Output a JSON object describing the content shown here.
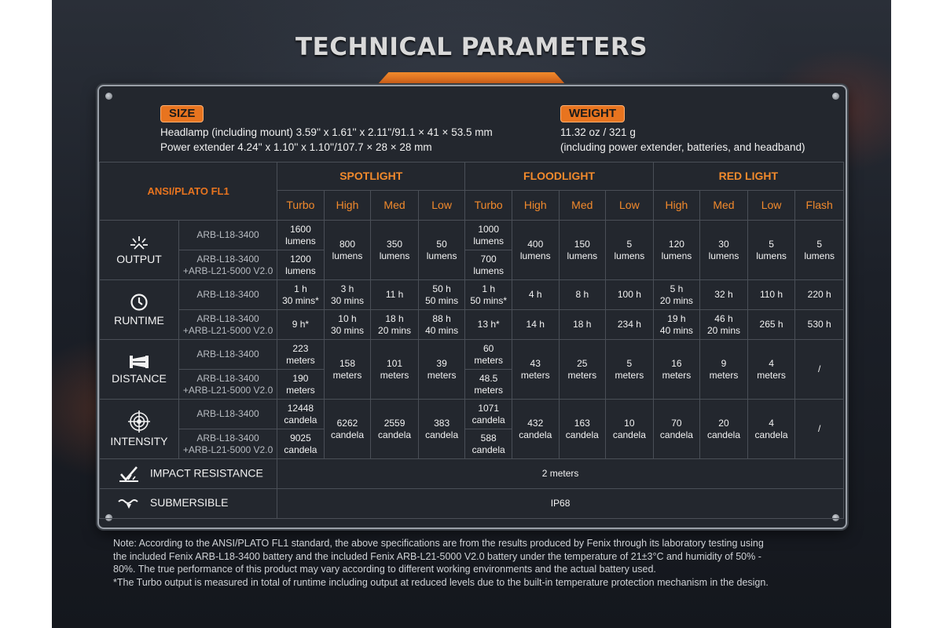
{
  "title": "TECHNICAL PARAMETERS",
  "colors": {
    "accent": "#e8741f",
    "header_text": "#f28a2c",
    "panel": "#23272e"
  },
  "size": {
    "badge": "SIZE",
    "line1": "Headlamp (including mount)  3.59'' x 1.61'' x 2.11''/91.1 × 41 × 53.5 mm",
    "line2": "Power extender  4.24'' x 1.10'' x 1.10''/107.7 × 28 × 28 mm"
  },
  "weight": {
    "badge": "WEIGHT",
    "line1": "11.32 oz / 321 g",
    "line2": "(including power extender, batteries, and headband)"
  },
  "table": {
    "ansi_label": "ANSI/PLATO FL1",
    "groups": [
      "SPOTLIGHT",
      "FLOODLIGHT",
      "RED LIGHT"
    ],
    "modes": [
      "Turbo",
      "High",
      "Med",
      "Low",
      "Turbo",
      "High",
      "Med",
      "Low",
      "High",
      "Med",
      "Low",
      "Flash"
    ],
    "model_a": "ARB-L18-3400",
    "model_b_1": "ARB-L18-3400",
    "model_b_2": "+ARB-L21-5000 V2.0",
    "output": {
      "label": "OUTPUT",
      "icon": "light-burst-icon",
      "spot_turbo_a_1": "1600",
      "spot_turbo_a_2": "lumens",
      "spot_turbo_b_1": "1200",
      "spot_turbo_b_2": "lumens",
      "flood_turbo_a_1": "1000",
      "flood_turbo_a_2": "lumens",
      "flood_turbo_b_1": "700",
      "flood_turbo_b_2": "lumens",
      "shared": [
        {
          "v": "800",
          "u": "lumens"
        },
        {
          "v": "350",
          "u": "lumens"
        },
        {
          "v": "50",
          "u": "lumens"
        },
        {
          "v": "400",
          "u": "lumens"
        },
        {
          "v": "150",
          "u": "lumens"
        },
        {
          "v": "5",
          "u": "lumens"
        },
        {
          "v": "120",
          "u": "lumens"
        },
        {
          "v": "30",
          "u": "lumens"
        },
        {
          "v": "5",
          "u": "lumens"
        },
        {
          "v": "5",
          "u": "lumens"
        }
      ]
    },
    "runtime": {
      "label": "RUNTIME",
      "icon": "clock-icon",
      "row_a": [
        [
          "1 h",
          "30 mins*"
        ],
        [
          "3 h",
          "30 mins"
        ],
        [
          "11 h",
          ""
        ],
        [
          "50 h",
          "50 mins"
        ],
        [
          "1 h",
          "50 mins*"
        ],
        [
          "4 h",
          ""
        ],
        [
          "8 h",
          ""
        ],
        [
          "100 h",
          ""
        ],
        [
          "5 h",
          "20 mins"
        ],
        [
          "32 h",
          ""
        ],
        [
          "110 h",
          ""
        ],
        [
          "220 h",
          ""
        ]
      ],
      "row_b": [
        [
          "9 h*",
          ""
        ],
        [
          "10 h",
          "30 mins"
        ],
        [
          "18 h",
          "20 mins"
        ],
        [
          "88 h",
          "40 mins"
        ],
        [
          "13 h*",
          ""
        ],
        [
          "14 h",
          ""
        ],
        [
          "18 h",
          ""
        ],
        [
          "234 h",
          ""
        ],
        [
          "19 h",
          "40 mins"
        ],
        [
          "46 h",
          "20 mins"
        ],
        [
          "265 h",
          ""
        ],
        [
          "530 h",
          ""
        ]
      ]
    },
    "distance": {
      "label": "DISTANCE",
      "icon": "beam-distance-icon",
      "spot_turbo_a_1": "223",
      "spot_turbo_a_2": "meters",
      "spot_turbo_b_1": "190",
      "spot_turbo_b_2": "meters",
      "flood_turbo_a_1": "60",
      "flood_turbo_a_2": "meters",
      "flood_turbo_b_1": "48.5",
      "flood_turbo_b_2": "meters",
      "shared": [
        {
          "v": "158",
          "u": "meters"
        },
        {
          "v": "101",
          "u": "meters"
        },
        {
          "v": "39",
          "u": "meters"
        },
        {
          "v": "43",
          "u": "meters"
        },
        {
          "v": "25",
          "u": "meters"
        },
        {
          "v": "5",
          "u": "meters"
        },
        {
          "v": "16",
          "u": "meters"
        },
        {
          "v": "9",
          "u": "meters"
        },
        {
          "v": "4",
          "u": "meters"
        },
        {
          "v": "/",
          "u": ""
        }
      ]
    },
    "intensity": {
      "label": "INTENSITY",
      "icon": "target-icon",
      "spot_turbo_a_1": "12448",
      "spot_turbo_a_2": "candela",
      "spot_turbo_b_1": "9025",
      "spot_turbo_b_2": "candela",
      "flood_turbo_a_1": "1071",
      "flood_turbo_a_2": "candela",
      "flood_turbo_b_1": "588",
      "flood_turbo_b_2": "candela",
      "shared": [
        {
          "v": "6262",
          "u": "candela"
        },
        {
          "v": "2559",
          "u": "candela"
        },
        {
          "v": "383",
          "u": "candela"
        },
        {
          "v": "432",
          "u": "candela"
        },
        {
          "v": "163",
          "u": "candela"
        },
        {
          "v": "10",
          "u": "candela"
        },
        {
          "v": "70",
          "u": "candela"
        },
        {
          "v": "20",
          "u": "candela"
        },
        {
          "v": "4",
          "u": "candela"
        },
        {
          "v": "/",
          "u": ""
        }
      ]
    },
    "impact": {
      "label": "IMPACT RESISTANCE",
      "value": "2 meters",
      "icon": "impact-icon"
    },
    "submersible": {
      "label": "SUBMERSIBLE",
      "value": "IP68",
      "icon": "wave-icon"
    }
  },
  "note": {
    "line1": "Note: According to the ANSI/PLATO FL1 standard, the above specifications are from the results produced by Fenix through its laboratory testing using",
    "line2": "the included Fenix ARB-L18-3400 battery and the included Fenix ARB-L21-5000 V2.0 battery under the temperature of 21±3°C and humidity of 50% -",
    "line3": "80%. The true performance of this product may vary according to different working environments and the actual battery used.",
    "line4": "*The Turbo output is measured in total of runtime including output at reduced levels due to the built-in temperature protection mechanism in the design."
  }
}
